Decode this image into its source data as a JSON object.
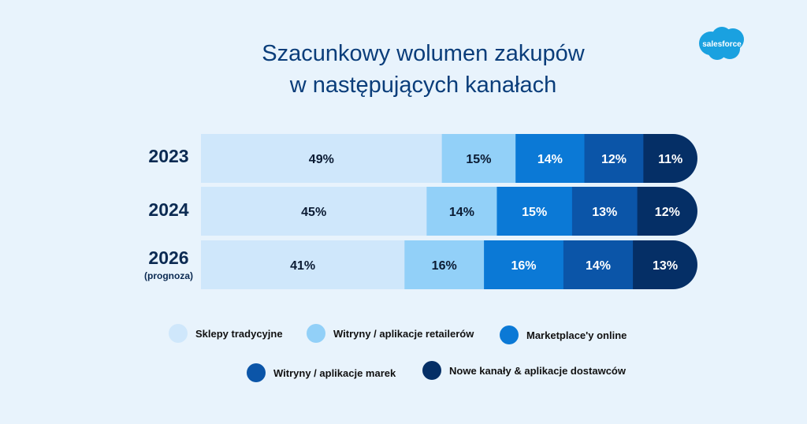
{
  "title_line1": "Szacunkowy wolumen zakupów",
  "title_line2": "w następujących kanałach",
  "logo_text": "salesforce",
  "colors": {
    "background": "#e8f3fc",
    "title": "#0a3d7a",
    "series": [
      "#cfe7fb",
      "#92d0f8",
      "#0b79d6",
      "#0b55a8",
      "#052f66"
    ],
    "label_dark": "#0b1b33",
    "label_light": "#ffffff",
    "logo": "#1aa1e0"
  },
  "chart_data": {
    "type": "bar",
    "orientation": "horizontal",
    "stacked": true,
    "categories": [
      "2023",
      "2024",
      "2026"
    ],
    "category_sublabels": [
      "",
      "",
      "(prognoza)"
    ],
    "series": [
      {
        "name": "Sklepy tradycyjne",
        "values": [
          49,
          45,
          41
        ]
      },
      {
        "name": "Witryny / aplikacje retailerów",
        "values": [
          15,
          14,
          16
        ]
      },
      {
        "name": "Marketplace'y online",
        "values": [
          14,
          15,
          16
        ]
      },
      {
        "name": "Witryny / aplikacje marek",
        "values": [
          12,
          13,
          14
        ]
      },
      {
        "name": "Nowe kanały & aplikacje dostawców",
        "values": [
          11,
          12,
          13
        ]
      }
    ],
    "value_format": "%",
    "xlabel": "",
    "ylabel": "",
    "legend_position": "bottom",
    "grid": false
  }
}
